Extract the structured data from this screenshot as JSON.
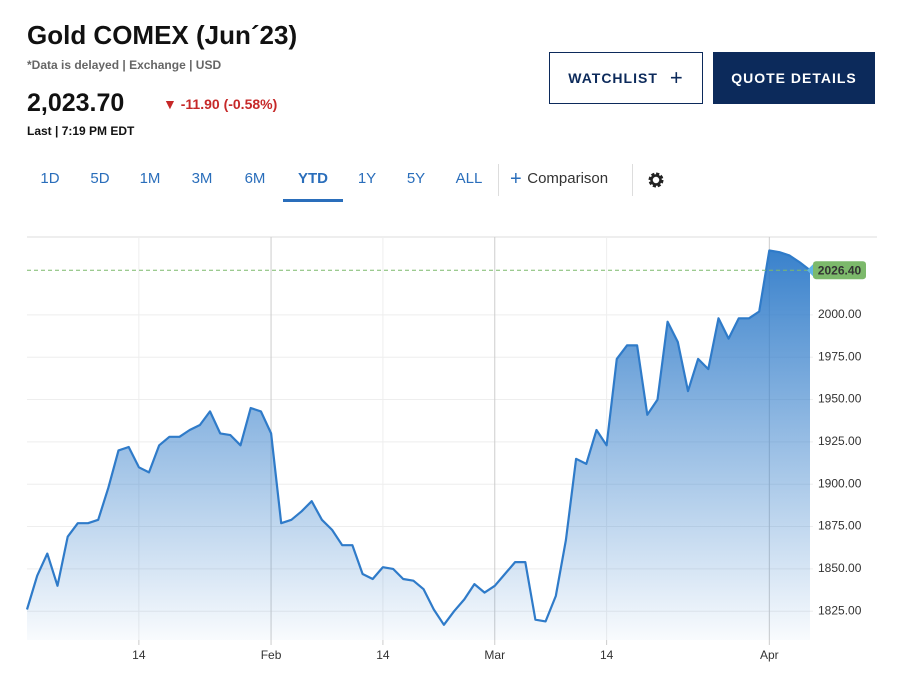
{
  "header": {
    "title": "Gold COMEX (Jun´23)",
    "subtitle": "*Data is delayed | Exchange | USD",
    "price": "2,023.70",
    "change": "-11.90 (-0.58%)",
    "last": "Last | 7:19 PM EDT"
  },
  "buttons": [
    "WATCHLIST",
    "QUOTE DETAILS"
  ],
  "tabs": [
    "1D",
    "5D",
    "1M",
    "3M",
    "6M",
    "YTD",
    "1Y",
    "5Y",
    "ALL"
  ],
  "selected_tab": "YTD",
  "comparison": "Comparison",
  "chart_data": {
    "type": "area",
    "categories": [
      null,
      null,
      null,
      null,
      null,
      null,
      null,
      null,
      null,
      null,
      null,
      "14",
      null,
      null,
      null,
      null,
      null,
      null,
      null,
      null,
      null,
      null,
      null,
      null,
      "Feb",
      null,
      null,
      null,
      null,
      null,
      null,
      null,
      null,
      null,
      null,
      "14",
      null,
      null,
      null,
      null,
      null,
      null,
      null,
      null,
      null,
      null,
      "Mar",
      null,
      null,
      null,
      null,
      null,
      null,
      null,
      null,
      null,
      null,
      "14",
      null,
      null,
      null,
      null,
      null,
      null,
      null,
      null,
      null,
      null,
      null,
      null,
      null,
      null,
      null,
      "Apr",
      null,
      null,
      null,
      null
    ],
    "values": [
      1826,
      1846,
      1859,
      1840,
      1869,
      1877,
      1877,
      1879,
      1898,
      1920,
      1922,
      1910,
      1907,
      1923,
      1928,
      1928,
      1932,
      1935,
      1943,
      1930,
      1929,
      1923,
      1945,
      1943,
      1930,
      1877,
      1879,
      1884,
      1890,
      1879,
      1873,
      1864,
      1864,
      1847,
      1844,
      1851,
      1850,
      1844,
      1843,
      1838,
      1826,
      1817,
      1825,
      1832,
      1841,
      1836,
      1840,
      1847,
      1854,
      1854,
      1820,
      1819,
      1834,
      1867,
      1915,
      1912,
      1932,
      1923,
      1974,
      1982,
      1982,
      1941,
      1950,
      1996,
      1984,
      1955,
      1974,
      1968,
      1998,
      1986,
      1998,
      1998,
      2002,
      2038,
      2037,
      2035,
      2031,
      2026.4
    ],
    "color": "#2f7bc9",
    "ylim": [
      1808,
      2046
    ],
    "yticks": [
      {
        "value": 1825,
        "label": "1825.00"
      },
      {
        "value": 1850,
        "label": "1850.00"
      },
      {
        "value": 1875,
        "label": "1875.00"
      },
      {
        "value": 1900,
        "label": "1900.00"
      },
      {
        "value": 1925,
        "label": "1925.00"
      },
      {
        "value": 1950,
        "label": "1950.00"
      },
      {
        "value": 1975,
        "label": "1975.00"
      },
      {
        "value": 2000,
        "label": "2000.00"
      }
    ],
    "reference_line": {
      "value": 2026.4,
      "label": "2026.40",
      "color": "#7cb96b"
    },
    "grid": true
  }
}
